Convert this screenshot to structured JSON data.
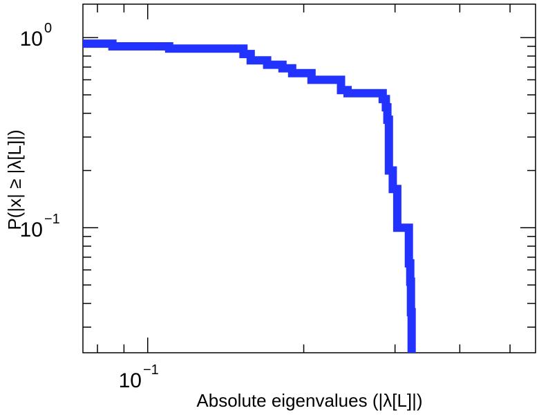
{
  "chart_data": {
    "type": "line",
    "xlabel": "Absolute eigenvalues (|λ[L]|)",
    "ylabel": "P(|x| ≥ |λ[L]|)",
    "x_scale": "log",
    "y_scale": "log",
    "xlim": [
      0.075,
      0.56
    ],
    "ylim": [
      0.022,
      1.5
    ],
    "grid": false,
    "legend": "none",
    "x_ticks": [
      {
        "value": 0.1,
        "base": "10",
        "exponent": "−1"
      }
    ],
    "y_ticks": [
      {
        "value": 1.0,
        "base": "10",
        "exponent": "0"
      },
      {
        "value": 0.1,
        "base": "10",
        "exponent": "−1"
      }
    ],
    "series": [
      {
        "color": "#2233ff",
        "step": true,
        "x": [
          0.075,
          0.0855,
          0.11,
          0.153,
          0.158,
          0.17,
          0.182,
          0.19,
          0.207,
          0.236,
          0.243,
          0.284,
          0.288,
          0.29,
          0.292,
          0.297,
          0.303,
          0.319,
          0.321,
          0.322,
          0.323
        ],
        "y": [
          0.93,
          0.9,
          0.875,
          0.82,
          0.76,
          0.72,
          0.69,
          0.65,
          0.6,
          0.53,
          0.51,
          0.475,
          0.43,
          0.37,
          0.2,
          0.16,
          0.1,
          0.065,
          0.052,
          0.036,
          0.022
        ]
      }
    ]
  }
}
